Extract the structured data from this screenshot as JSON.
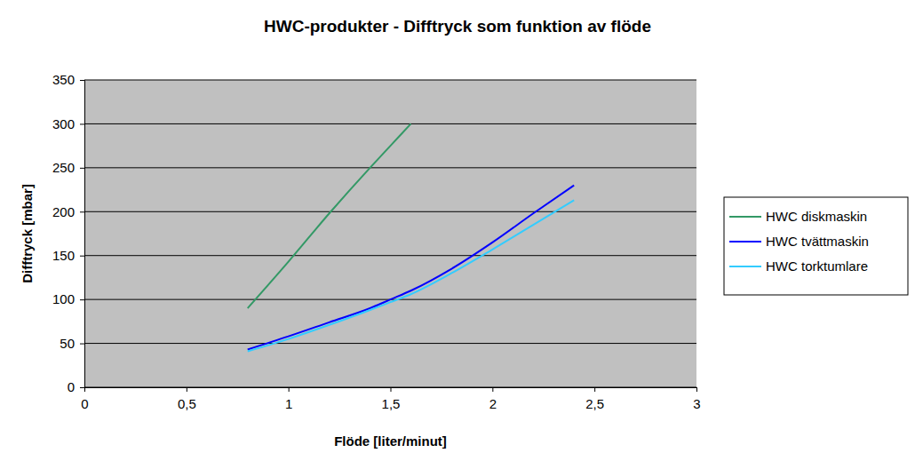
{
  "chart_data": {
    "type": "line",
    "title": "HWC-produkter - Difftryck som funktion av flöde",
    "x_label": "Flöde [liter/minut]",
    "y_label": "Difftryck [mbar]",
    "x": [
      0.8,
      1.0,
      1.2,
      1.4,
      1.5,
      1.6,
      1.8,
      2.0,
      2.2,
      2.4
    ],
    "series": [
      {
        "name": "HWC diskmaskin",
        "color": "#339966",
        "values": [
          90,
          143,
          198,
          250,
          275,
          300,
          null,
          null,
          null,
          null
        ]
      },
      {
        "name": "HWC tvättmaskin",
        "color": "#0000ff",
        "values": [
          43,
          58,
          74,
          90,
          100,
          110,
          135,
          165,
          198,
          230
        ]
      },
      {
        "name": "HWC torktumlare",
        "color": "#33ccff",
        "values": [
          41,
          55,
          71,
          88,
          97,
          106,
          130,
          157,
          185,
          213
        ]
      }
    ],
    "xlim": [
      0,
      3
    ],
    "xticks": [
      0,
      {
        "value": 0.5,
        "label": "0,5"
      },
      1,
      {
        "value": 1.5,
        "label": "1,5"
      },
      2,
      {
        "value": 2.5,
        "label": "2,5"
      },
      3
    ],
    "ylim": [
      0,
      350
    ],
    "yticks": [
      0,
      50,
      100,
      150,
      200,
      250,
      300,
      350
    ],
    "grid": true,
    "legend": "right"
  }
}
